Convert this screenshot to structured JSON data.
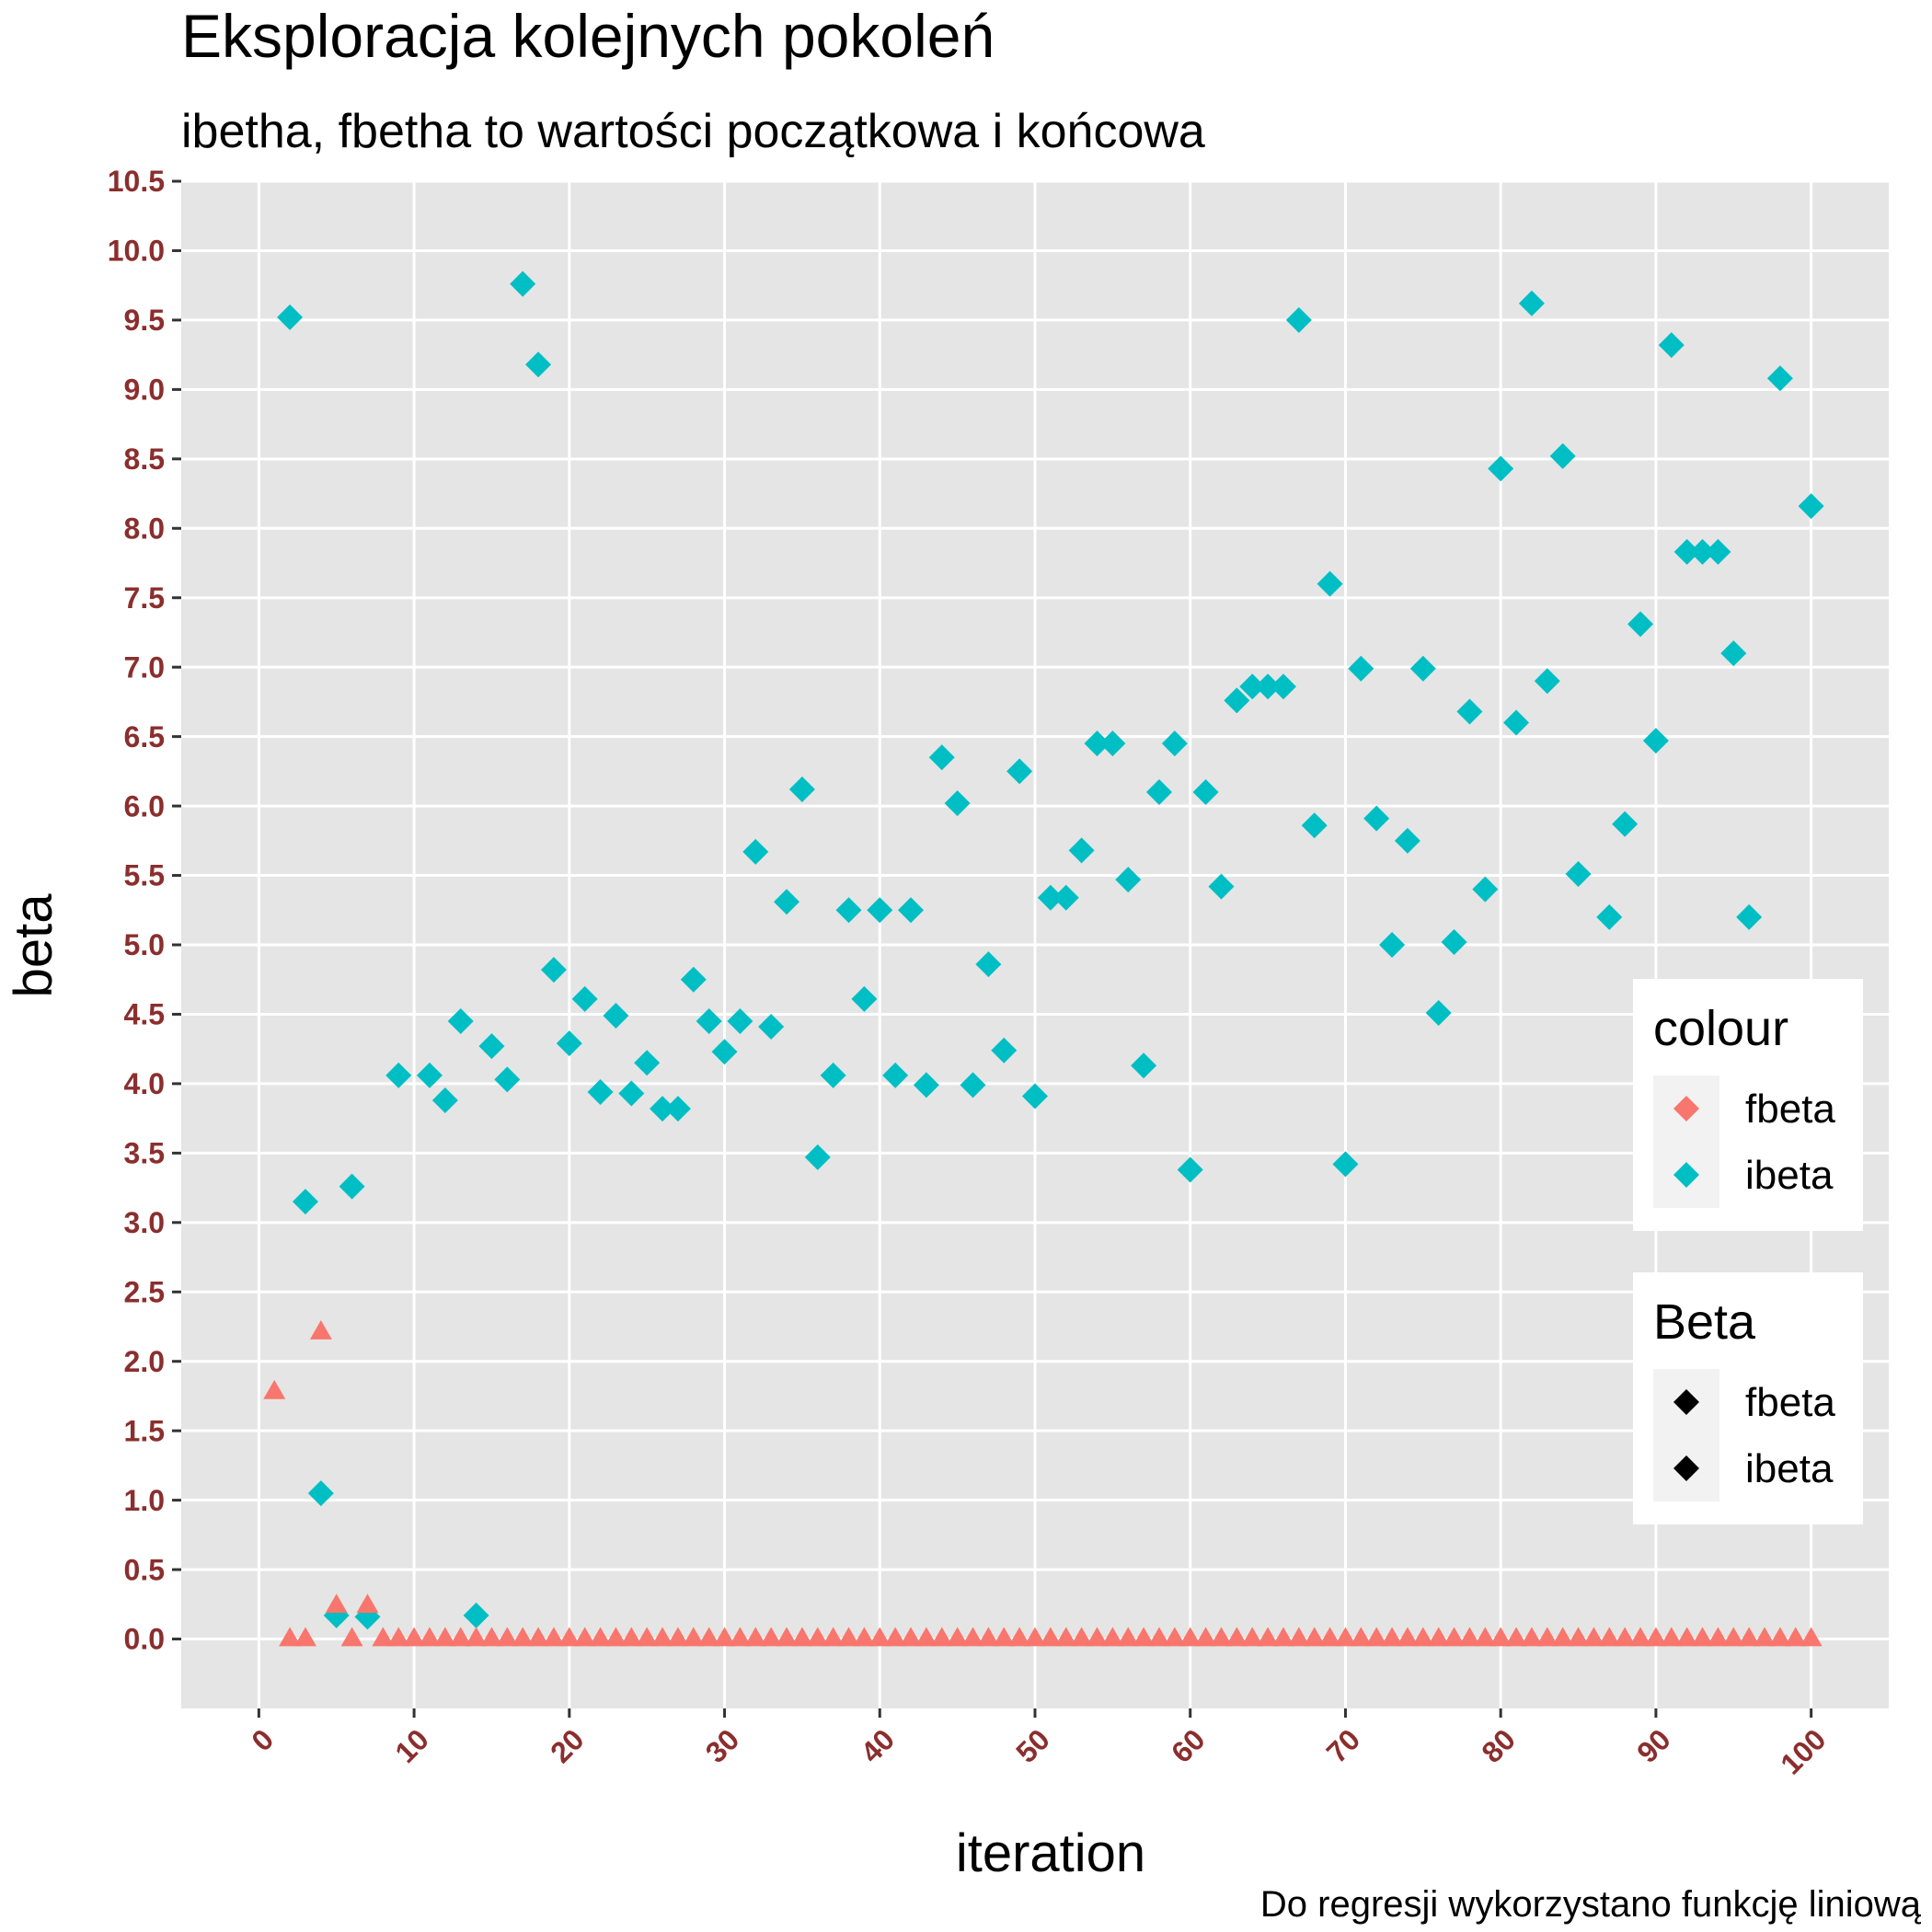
{
  "chart_data": {
    "type": "scatter",
    "title": "Eksploracja kolejnych pokoleń",
    "subtitle": "ibetha, fbetha to wartości początkowa i końcowa",
    "xlabel": "iteration",
    "ylabel": "beta",
    "caption": "Do regresji wykorzystano funkcję liniową",
    "xlim": [
      -5,
      105
    ],
    "ylim": [
      -0.5,
      10.5
    ],
    "x_ticks": [
      "0",
      "10",
      "20",
      "30",
      "40",
      "50",
      "60",
      "70",
      "80",
      "90",
      "100"
    ],
    "y_ticks": [
      "0.0",
      "0.5",
      "1.0",
      "1.5",
      "2.0",
      "2.5",
      "3.0",
      "3.5",
      "4.0",
      "4.5",
      "5.0",
      "5.5",
      "6.0",
      "6.5",
      "7.0",
      "7.5",
      "8.0",
      "8.5",
      "9.0",
      "9.5",
      "10.0",
      "10.5"
    ],
    "grid": true,
    "legend_position": "right",
    "legends": [
      {
        "title": "colour",
        "entries": [
          {
            "label": "fbeta",
            "color": "#F8766D"
          },
          {
            "label": "ibeta",
            "color": "#00BFC4"
          }
        ]
      },
      {
        "title": "Beta",
        "entries": [
          {
            "label": "fbeta",
            "color": "#000000"
          },
          {
            "label": "ibeta",
            "color": "#000000"
          }
        ]
      }
    ],
    "series": [
      {
        "name": "ibeta",
        "color": "#00BFC4",
        "marker": "diamond",
        "points": [
          [
            2,
            9.52
          ],
          [
            3,
            3.15
          ],
          [
            4,
            1.05
          ],
          [
            5,
            0.17
          ],
          [
            6,
            3.26
          ],
          [
            7,
            0.16
          ],
          [
            9,
            4.06
          ],
          [
            11,
            4.06
          ],
          [
            12,
            3.88
          ],
          [
            13,
            4.45
          ],
          [
            14,
            0.17
          ],
          [
            15,
            4.27
          ],
          [
            16,
            4.03
          ],
          [
            17,
            9.76
          ],
          [
            18,
            9.18
          ],
          [
            19,
            4.82
          ],
          [
            20,
            4.29
          ],
          [
            21,
            4.61
          ],
          [
            22,
            3.94
          ],
          [
            23,
            4.49
          ],
          [
            24,
            3.93
          ],
          [
            25,
            4.15
          ],
          [
            26,
            3.82
          ],
          [
            27,
            3.82
          ],
          [
            28,
            4.75
          ],
          [
            29,
            4.45
          ],
          [
            30,
            4.23
          ],
          [
            31,
            4.45
          ],
          [
            32,
            5.67
          ],
          [
            33,
            4.41
          ],
          [
            34,
            5.31
          ],
          [
            35,
            6.12
          ],
          [
            36,
            3.47
          ],
          [
            37,
            4.06
          ],
          [
            38,
            5.25
          ],
          [
            39,
            4.61
          ],
          [
            40,
            5.25
          ],
          [
            41,
            4.06
          ],
          [
            42,
            5.25
          ],
          [
            43,
            3.99
          ],
          [
            44,
            6.35
          ],
          [
            45,
            6.02
          ],
          [
            46,
            3.99
          ],
          [
            47,
            4.86
          ],
          [
            48,
            4.24
          ],
          [
            49,
            6.25
          ],
          [
            50,
            3.91
          ],
          [
            51,
            5.34
          ],
          [
            52,
            5.34
          ],
          [
            53,
            5.68
          ],
          [
            54,
            6.45
          ],
          [
            55,
            6.45
          ],
          [
            56,
            5.47
          ],
          [
            57,
            4.13
          ],
          [
            58,
            6.1
          ],
          [
            59,
            6.45
          ],
          [
            60,
            3.38
          ],
          [
            61,
            6.1
          ],
          [
            62,
            5.42
          ],
          [
            63,
            6.76
          ],
          [
            64,
            6.86
          ],
          [
            65,
            6.86
          ],
          [
            66,
            6.86
          ],
          [
            67,
            9.5
          ],
          [
            68,
            5.86
          ],
          [
            69,
            7.6
          ],
          [
            70,
            3.42
          ],
          [
            71,
            6.99
          ],
          [
            72,
            5.91
          ],
          [
            73,
            5.0
          ],
          [
            74,
            5.75
          ],
          [
            75,
            6.99
          ],
          [
            76,
            4.51
          ],
          [
            77,
            5.02
          ],
          [
            78,
            6.68
          ],
          [
            79,
            5.4
          ],
          [
            80,
            8.43
          ],
          [
            81,
            6.6
          ],
          [
            82,
            9.62
          ],
          [
            83,
            6.9
          ],
          [
            84,
            8.52
          ],
          [
            85,
            5.51
          ],
          [
            87,
            5.2
          ],
          [
            88,
            5.87
          ],
          [
            89,
            7.31
          ],
          [
            90,
            6.47
          ],
          [
            91,
            9.32
          ],
          [
            92,
            7.83
          ],
          [
            93,
            7.83
          ],
          [
            94,
            7.83
          ],
          [
            95,
            7.1
          ],
          [
            96,
            5.2
          ],
          [
            98,
            9.08
          ],
          [
            100,
            8.16
          ]
        ]
      },
      {
        "name": "fbeta",
        "color": "#F8766D",
        "marker": "triangle",
        "points": [
          [
            1,
            1.78
          ],
          [
            2,
            0.0
          ],
          [
            3,
            0.0
          ],
          [
            4,
            2.21
          ],
          [
            5,
            0.24
          ],
          [
            6,
            0.0
          ],
          [
            7,
            0.24
          ],
          [
            8,
            0.0
          ],
          [
            9,
            0.0
          ],
          [
            10,
            0.0
          ],
          [
            11,
            0.0
          ],
          [
            12,
            0.0
          ],
          [
            13,
            0.0
          ],
          [
            14,
            0.0
          ],
          [
            15,
            0.0
          ],
          [
            16,
            0.0
          ],
          [
            17,
            0.0
          ],
          [
            18,
            0.0
          ],
          [
            19,
            0.0
          ],
          [
            20,
            0.0
          ],
          [
            21,
            0.0
          ],
          [
            22,
            0.0
          ],
          [
            23,
            0.0
          ],
          [
            24,
            0.0
          ],
          [
            25,
            0.0
          ],
          [
            26,
            0.0
          ],
          [
            27,
            0.0
          ],
          [
            28,
            0.0
          ],
          [
            29,
            0.0
          ],
          [
            30,
            0.0
          ],
          [
            31,
            0.0
          ],
          [
            32,
            0.0
          ],
          [
            33,
            0.0
          ],
          [
            34,
            0.0
          ],
          [
            35,
            0.0
          ],
          [
            36,
            0.0
          ],
          [
            37,
            0.0
          ],
          [
            38,
            0.0
          ],
          [
            39,
            0.0
          ],
          [
            40,
            0.0
          ],
          [
            41,
            0.0
          ],
          [
            42,
            0.0
          ],
          [
            43,
            0.0
          ],
          [
            44,
            0.0
          ],
          [
            45,
            0.0
          ],
          [
            46,
            0.0
          ],
          [
            47,
            0.0
          ],
          [
            48,
            0.0
          ],
          [
            49,
            0.0
          ],
          [
            50,
            0.0
          ],
          [
            51,
            0.0
          ],
          [
            52,
            0.0
          ],
          [
            53,
            0.0
          ],
          [
            54,
            0.0
          ],
          [
            55,
            0.0
          ],
          [
            56,
            0.0
          ],
          [
            57,
            0.0
          ],
          [
            58,
            0.0
          ],
          [
            59,
            0.0
          ],
          [
            60,
            0.0
          ],
          [
            61,
            0.0
          ],
          [
            62,
            0.0
          ],
          [
            63,
            0.0
          ],
          [
            64,
            0.0
          ],
          [
            65,
            0.0
          ],
          [
            66,
            0.0
          ],
          [
            67,
            0.0
          ],
          [
            68,
            0.0
          ],
          [
            69,
            0.0
          ],
          [
            70,
            0.0
          ],
          [
            71,
            0.0
          ],
          [
            72,
            0.0
          ],
          [
            73,
            0.0
          ],
          [
            74,
            0.0
          ],
          [
            75,
            0.0
          ],
          [
            76,
            0.0
          ],
          [
            77,
            0.0
          ],
          [
            78,
            0.0
          ],
          [
            79,
            0.0
          ],
          [
            80,
            0.0
          ],
          [
            81,
            0.0
          ],
          [
            82,
            0.0
          ],
          [
            83,
            0.0
          ],
          [
            84,
            0.0
          ],
          [
            85,
            0.0
          ],
          [
            86,
            0.0
          ],
          [
            87,
            0.0
          ],
          [
            88,
            0.0
          ],
          [
            89,
            0.0
          ],
          [
            90,
            0.0
          ],
          [
            91,
            0.0
          ],
          [
            92,
            0.0
          ],
          [
            93,
            0.0
          ],
          [
            94,
            0.0
          ],
          [
            95,
            0.0
          ],
          [
            96,
            0.0
          ],
          [
            97,
            0.0
          ],
          [
            98,
            0.0
          ],
          [
            99,
            0.0
          ],
          [
            100,
            0.0
          ]
        ]
      }
    ]
  }
}
